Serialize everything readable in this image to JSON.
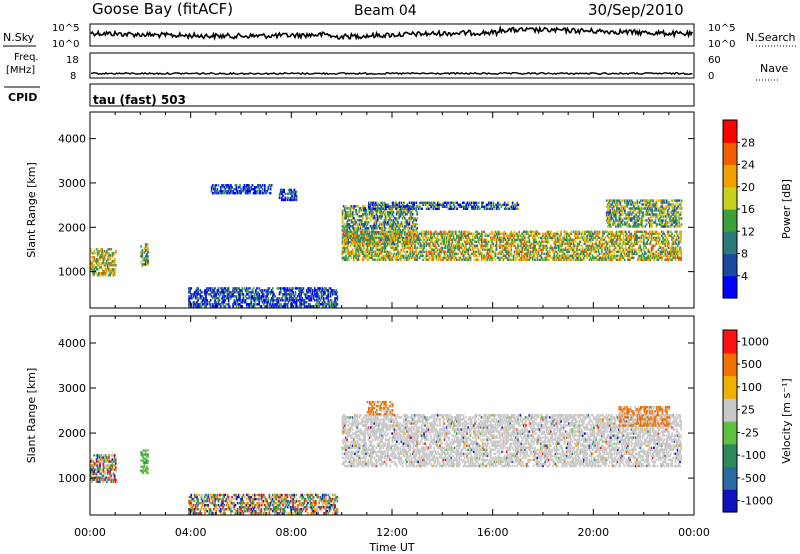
{
  "header": {
    "station": "Goose Bay (fitACF)",
    "beam": "Beam 04",
    "date": "30/Sep/2010"
  },
  "meta_panels": {
    "nsky_label": "N.Sky",
    "nsearch_label": "N.Search",
    "noise_ticks": [
      "10^5",
      "10^0"
    ],
    "freq_label_1": "Freq.",
    "freq_label_2": "[MHz]",
    "freq_ticks": [
      "18",
      "8"
    ],
    "nave_label": "Nave",
    "nave_ticks": [
      "60",
      "0"
    ],
    "cpid_label": "CPID",
    "cpid_value": "tau (fast) 503"
  },
  "chart_data": [
    {
      "type": "heatmap",
      "name": "power",
      "title": "",
      "xlabel": "Time UT",
      "ylabel": "Slant Range [km]",
      "xlim": [
        0,
        24
      ],
      "ylim": [
        180,
        4600
      ],
      "x_ticks": [
        "00:00",
        "04:00",
        "08:00",
        "12:00",
        "16:00",
        "20:00",
        "00:00"
      ],
      "y_ticks": [
        "1000",
        "2000",
        "3000",
        "4000"
      ],
      "colorbar": {
        "label": "Power [dB]",
        "ticks": [
          "28",
          "24",
          "20",
          "16",
          "12",
          "8",
          "4"
        ],
        "colors": [
          "#0000ff",
          "#1a4aa0",
          "#2e7a7a",
          "#3aa03a",
          "#c8d020",
          "#f0a000",
          "#f06000",
          "#ff0000"
        ]
      },
      "regions": [
        {
          "t": [
            0.0,
            1.0
          ],
          "r": [
            900,
            1500
          ],
          "level": 0.55
        },
        {
          "t": [
            2.0,
            2.3
          ],
          "r": [
            1100,
            1600
          ],
          "level": 0.4
        },
        {
          "t": [
            3.9,
            9.8
          ],
          "r": [
            200,
            650
          ],
          "level": 0.15
        },
        {
          "t": [
            4.8,
            7.2
          ],
          "r": [
            2750,
            2950
          ],
          "level": 0.15
        },
        {
          "t": [
            7.5,
            8.2
          ],
          "r": [
            2600,
            2850
          ],
          "level": 0.15
        },
        {
          "t": [
            10.0,
            13.0
          ],
          "r": [
            1600,
            2500
          ],
          "level": 0.4
        },
        {
          "t": [
            10.0,
            23.5
          ],
          "r": [
            1250,
            1900
          ],
          "level": 0.55
        },
        {
          "t": [
            11.0,
            17.0
          ],
          "r": [
            2400,
            2550
          ],
          "level": 0.25
        },
        {
          "t": [
            20.5,
            23.5
          ],
          "r": [
            2000,
            2600
          ],
          "level": 0.45
        }
      ]
    },
    {
      "type": "heatmap",
      "name": "velocity",
      "title": "",
      "xlabel": "Time UT",
      "ylabel": "Slant Range [km]",
      "xlim": [
        0,
        24
      ],
      "ylim": [
        180,
        4600
      ],
      "x_ticks": [
        "00:00",
        "04:00",
        "08:00",
        "12:00",
        "16:00",
        "20:00",
        "00:00"
      ],
      "y_ticks": [
        "1000",
        "2000",
        "3000",
        "4000"
      ],
      "colorbar": {
        "label": "Velocity [m s⁻¹]",
        "ticks": [
          "1000",
          "500",
          "100",
          "25",
          "-25",
          "-100",
          "-500",
          "-1000"
        ],
        "colors": [
          "#1010c0",
          "#2a6aa0",
          "#2a8a5a",
          "#60c040",
          "#c8c8c8",
          "#f0b000",
          "#f07000",
          "#ff1010"
        ]
      },
      "regions": [
        {
          "t": [
            0.0,
            1.0
          ],
          "r": [
            900,
            1500
          ],
          "kind": "mixed"
        },
        {
          "t": [
            2.0,
            2.3
          ],
          "r": [
            1100,
            1600
          ],
          "kind": "green"
        },
        {
          "t": [
            10.0,
            23.5
          ],
          "r": [
            1250,
            2400
          ],
          "kind": "grey"
        },
        {
          "t": [
            11.0,
            12.0
          ],
          "r": [
            2400,
            2700
          ],
          "kind": "orange"
        },
        {
          "t": [
            21.0,
            23.0
          ],
          "r": [
            2150,
            2600
          ],
          "kind": "orange"
        },
        {
          "t": [
            3.9,
            9.8
          ],
          "r": [
            200,
            650
          ],
          "kind": "speckle"
        }
      ]
    }
  ]
}
